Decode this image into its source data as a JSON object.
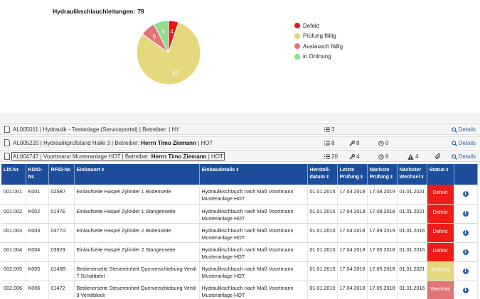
{
  "chart_data": {
    "type": "pie",
    "title": "Hydraulikschlauchleitungen:",
    "total": 79,
    "slices": [
      {
        "name": "Defekt",
        "value": 4,
        "color": "#e8161b"
      },
      {
        "name": "Prüfung fällig",
        "value": 63,
        "color": "#e4d87d"
      },
      {
        "name": "Austausch fällig",
        "value": 6,
        "color": "#e27478"
      },
      {
        "name": "in Ordnung",
        "value": 6,
        "color": "#8ddf8c"
      }
    ],
    "legend": [
      "Defekt",
      "Prüfung fällig",
      "Austausch fällig",
      "in Ordnung"
    ]
  },
  "equipment": [
    {
      "text": "AL005011 | Hydraulik - Testanlage (Serviceportal) | Betreiber: | HY",
      "list_count": "3",
      "details": "Details"
    },
    {
      "prefix": "AL005220 | Hydraulikprüfstand Halle 3 | Betreiber:",
      "operator": "Herrn Timo Ziemann",
      "suffix": "| HOT",
      "list_count": "8",
      "wrench_count": "8",
      "clock_count": "0",
      "details": "Details"
    },
    {
      "prefix": "AL004747 | Voortmann Musteranlage HOT | Betreiber:",
      "operator": "Herrn Timo Ziemann",
      "suffix": "| HOT",
      "list_count": "20",
      "wrench_count": "4",
      "clock_count": "6",
      "warn_count": "4",
      "details": "Details"
    }
  ],
  "table": {
    "headers": {
      "lfd": [
        "Lfd.Nr."
      ],
      "kdid": [
        "KDID-",
        "Nr."
      ],
      "rfid": [
        "RFID-Nr."
      ],
      "einbauort": [
        "Einbauort"
      ],
      "einbaudetails": [
        "Einbaudetails"
      ],
      "herstell": [
        "Herstell-",
        "datum"
      ],
      "letzte": [
        "Letzte",
        "Prüfung"
      ],
      "naechste_pruefung": [
        "Nächste",
        "Prüfung"
      ],
      "naechster_wechsel": [
        "Nächster",
        "Wechsel"
      ],
      "status": [
        "Status"
      ]
    },
    "sort_glyph": "⇕",
    "info_glyph": "i",
    "rows": [
      {
        "lfd": "001.001",
        "kdid": "K001",
        "rfid": "025B7",
        "einbauort": "Einlaufseite Haspel Zylinder 1 Bodenseite",
        "details": "Hydraulikschlauch nach Maß Voortmann Musteranlage HOT",
        "herstell": "01.01.2015",
        "letzte": "17.04.2018",
        "naechste": "17.08.2019",
        "wechsel": "01.01.2021",
        "status": "Defekt",
        "status_color": "#ee1c16"
      },
      {
        "lfd": "001.002",
        "kdid": "K002",
        "rfid": "0147E",
        "einbauort": "Einlaufseite Haspel Zylinder 1 Stangenseite",
        "details": "Hydraulikschlauch nach Maß Voortmann Musteranlage HOT",
        "herstell": "01.01.2015",
        "letzte": "17.04.2018",
        "naechste": "17.08.2018",
        "wechsel": "01.01.2021",
        "status": "Defekt",
        "status_color": "#ee1c16"
      },
      {
        "lfd": "001.003",
        "kdid": "K003",
        "rfid": "0377D",
        "einbauort": "Einlaufseite Haspel Zylinder 2 Bodenseite",
        "details": "Hydraulikschlauch nach Maß Voortmann Musteranlage HOT",
        "herstell": "01.01.2010",
        "letzte": "17.04.2018",
        "naechste": "17.09.2019",
        "wechsel": "01.01.2016",
        "status": "Defekt",
        "status_color": "#ee1c16"
      },
      {
        "lfd": "001.004",
        "kdid": "K004",
        "rfid": "03929",
        "einbauort": "Einlaufseite Haspel Zylinder 2 Stangenseite",
        "details": "Hydraulikschlauch nach Maß Voortmann Musteranlage HOT",
        "herstell": "01.01.2010",
        "letzte": "17.04.2018",
        "naechste": "17.05.2018",
        "wechsel": "01.01.2016",
        "status": "Defekt",
        "status_color": "#ee1c16"
      },
      {
        "lfd": "002.005",
        "kdid": "K005",
        "rfid": "0145B",
        "einbauort": "Bedienerseite Steuereinheit Querverschiebung Ventil 7 Schalttafel",
        "details": "Hydraulikschlauch nach Maß Voortmann Musteranlage HOT",
        "herstell": "01.01.2015",
        "letzte": "17.04.2018",
        "naechste": "17.05.2018",
        "wechsel": "01.01.2021",
        "status": "Prüfung",
        "status_color": "#e4d87d"
      },
      {
        "lfd": "002.006",
        "kdid": "K006",
        "rfid": "01472",
        "einbauort": "Bedienerseite Steuereinheit Querverschiebung Ventil 9 Ventilblock",
        "details": "Hydraulikschlauch nach Maß Voortmann Musteranlage HOT",
        "herstell": "01.01.2010",
        "letzte": "17.04.2018",
        "naechste": "17.05.2018",
        "wechsel": "01.01.2016",
        "status": "Wechsel",
        "status_color": "#e27478"
      }
    ]
  }
}
